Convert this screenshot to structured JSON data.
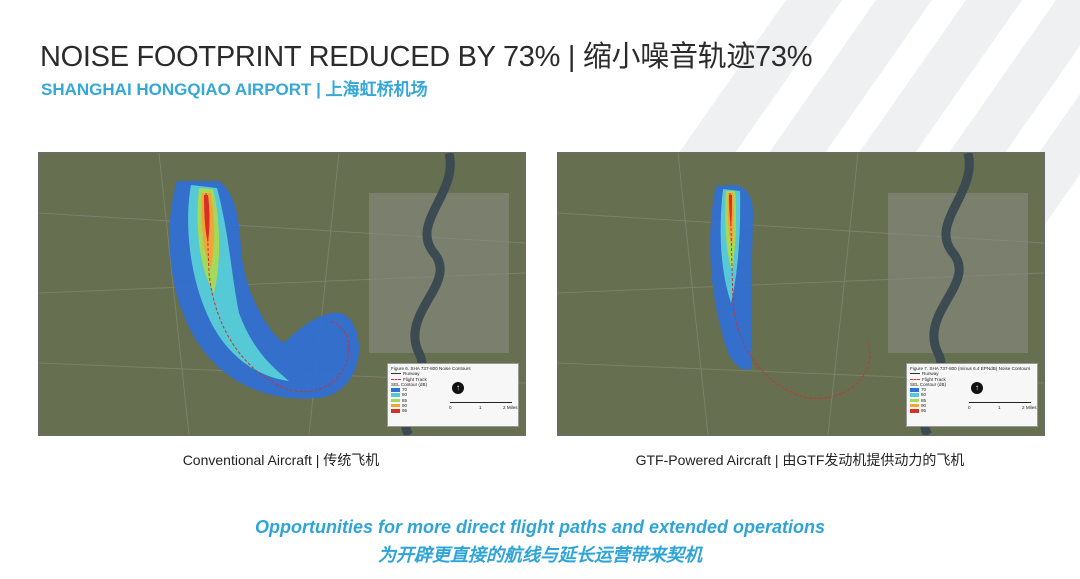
{
  "header": {
    "title": "NOISE FOOTPRINT REDUCED BY 73% | 缩小噪音轨迹73%",
    "subtitle": "SHANGHAI HONGQIAO AIRPORT | 上海虹桥机场"
  },
  "maps": [
    {
      "caption": "Conventional Aircraft | 传统飞机",
      "legend_title": "Figure 6. SHA 737-800 Noise Contours",
      "legend_runway": "Runway",
      "legend_track": "Flight Track",
      "legend_sel": "SEL Contour (dB)",
      "contour_levels": [
        "70",
        "80",
        "85",
        "90",
        "95"
      ],
      "scale_labels": [
        "0",
        "1",
        "2 Miles"
      ]
    },
    {
      "caption": "GTF-Powered Aircraft | 由GTF发动机提供动力的飞机",
      "legend_title": "Figure 7. SHA 737-800 (minus 6.4 EPNdB) Noise Contours",
      "legend_runway": "Runway",
      "legend_track": "Flight Track",
      "legend_sel": "SEL Contour (dB)",
      "contour_levels": [
        "70",
        "80",
        "85",
        "90",
        "95"
      ],
      "scale_labels": [
        "0",
        "1",
        "2 Miles"
      ]
    }
  ],
  "footer": {
    "line_en": "Opportunities for more direct flight paths and extended operations",
    "line_zh": "为开辟更直接的航线与延长运营带来契机"
  },
  "colors": {
    "title": "#2b2b2b",
    "accent": "#35a8d8",
    "contour": [
      "#2e6fd8",
      "#56c9d6",
      "#a6d957",
      "#f0a43a",
      "#d9301f"
    ]
  }
}
